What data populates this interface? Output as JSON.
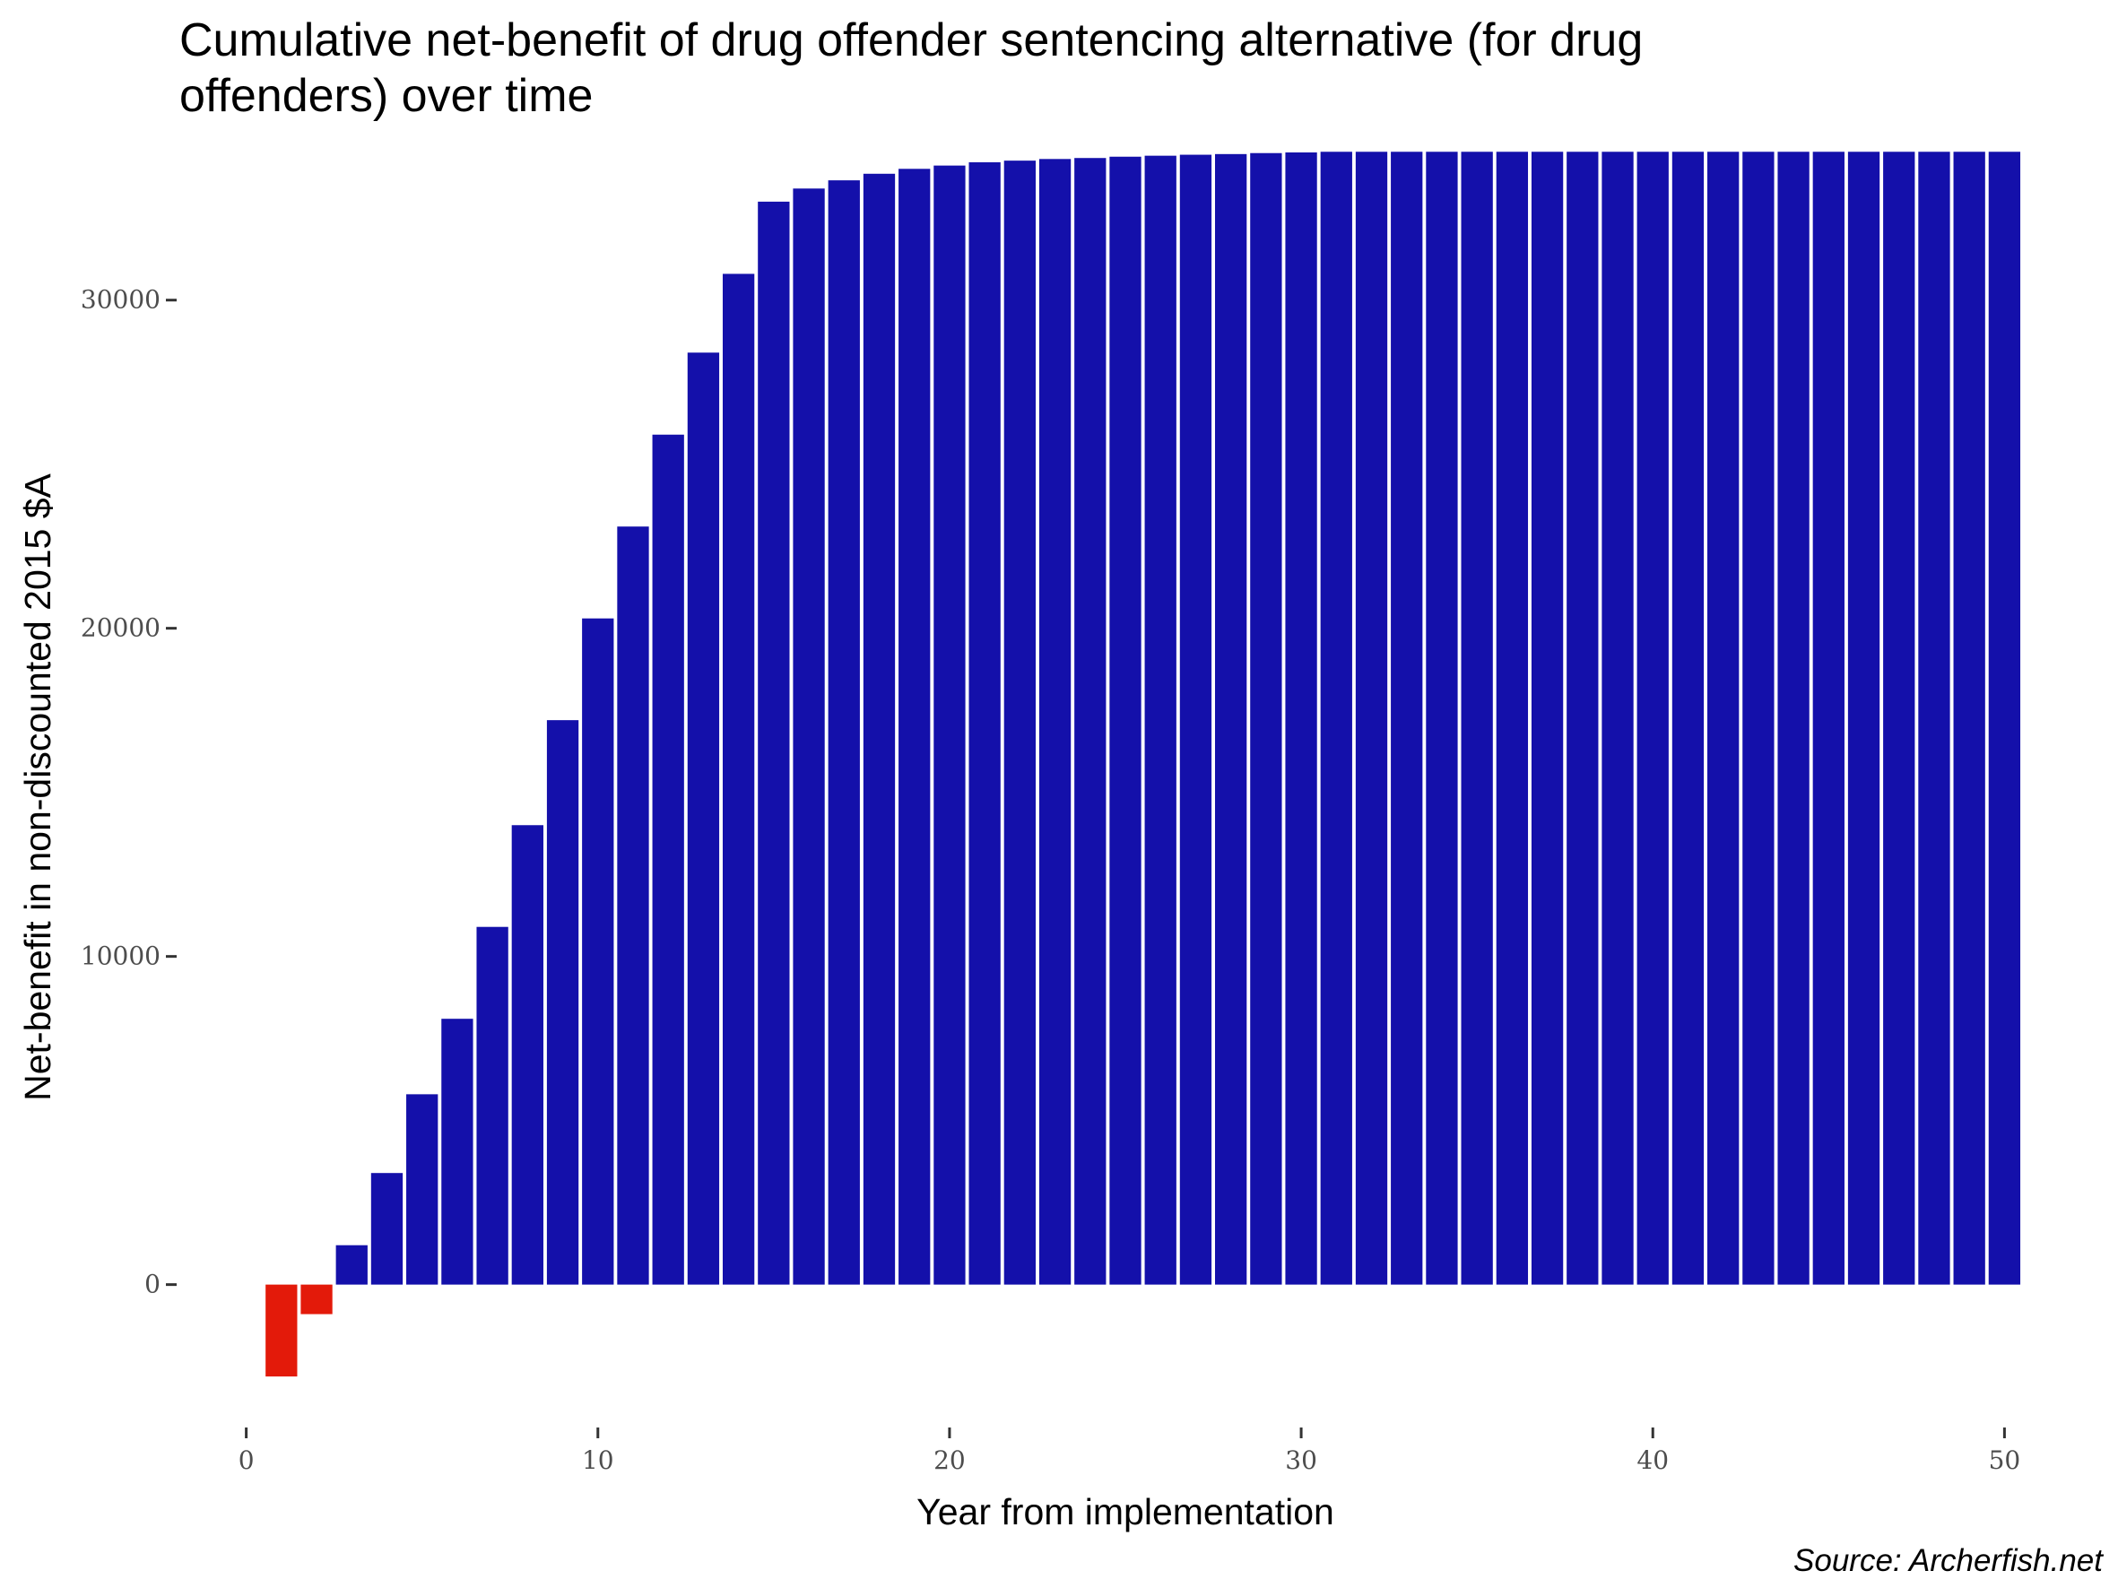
{
  "chart_data": {
    "type": "bar",
    "title": "Cumulative net-benefit of drug offender sentencing alternative (for drug offenders) over time",
    "title_lines": [
      "Cumulative net-benefit of drug offender sentencing alternative (for drug",
      "offenders) over time"
    ],
    "xlabel": "Year from implementation",
    "ylabel": "Net-benefit in non-discounted 2015 $A",
    "caption": "Source: Archerfish.net",
    "xlim": [
      -0.5,
      50.5
    ],
    "ylim": [
      -4300,
      34500
    ],
    "xticks": [
      0,
      10,
      20,
      30,
      40,
      50
    ],
    "yticks": [
      0,
      10000,
      20000,
      30000
    ],
    "grid": false,
    "colors": {
      "positive": "#1410AA",
      "negative": "#E31A0A"
    },
    "x": [
      1,
      2,
      3,
      4,
      5,
      6,
      7,
      8,
      9,
      10,
      11,
      12,
      13,
      14,
      15,
      16,
      17,
      18,
      19,
      20,
      21,
      22,
      23,
      24,
      25,
      26,
      27,
      28,
      29,
      30,
      31,
      32,
      33,
      34,
      35,
      36,
      37,
      38,
      39,
      40,
      41,
      42,
      43,
      44,
      45,
      46,
      47,
      48,
      49,
      50
    ],
    "values": [
      -2800,
      -900,
      1200,
      3400,
      5800,
      8100,
      10900,
      14000,
      17200,
      20300,
      23100,
      25900,
      28400,
      30800,
      33000,
      33400,
      33650,
      33850,
      34000,
      34100,
      34200,
      34250,
      34300,
      34330,
      34370,
      34400,
      34430,
      34450,
      34480,
      34500,
      34520,
      34520,
      34520,
      34520,
      34520,
      34520,
      34520,
      34520,
      34520,
      34520,
      34520,
      34520,
      34520,
      34520,
      34520,
      34520,
      34520,
      34520,
      34520,
      34520
    ]
  }
}
